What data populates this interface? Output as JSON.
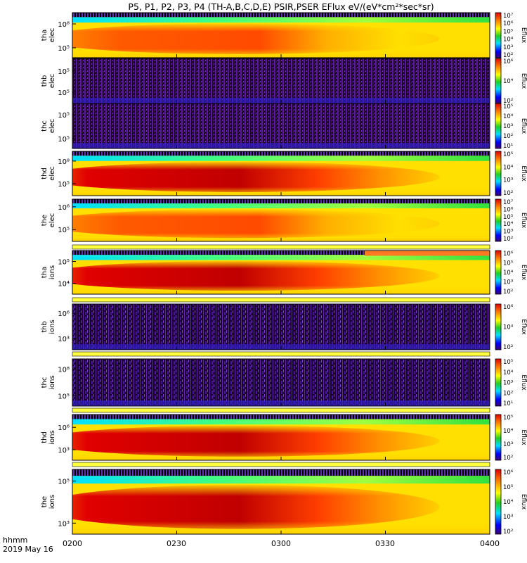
{
  "title": "P5, P1, P2, P3, P4 (TH-A,B,C,D,E) PSIR,PSER EFlux eV/(eV*cm²*sec*sr)",
  "xaxis": {
    "label_line1": "hhmm",
    "label_line2": "2019 May 16",
    "range": [
      "0200",
      "0400"
    ],
    "ticks": [
      "0200",
      "0230",
      "0300",
      "0330",
      "0400"
    ]
  },
  "colorbar_label": "Eflux",
  "chart_data": [
    {
      "type": "heatmap",
      "probe": "tha",
      "species": "elec",
      "ylabel": "tha elec",
      "yticks": [
        "10⁵",
        "10⁸"
      ],
      "cbar_ticks": [
        "10²",
        "10³",
        "10⁴",
        "10⁵",
        "10⁶",
        "10⁷"
      ]
    },
    {
      "type": "heatmap",
      "probe": "thb",
      "species": "elec",
      "ylabel": "thb elec",
      "yticks": [
        "10⁵",
        "10⁵"
      ],
      "cbar_ticks": [
        "10²",
        "10⁴",
        "10⁶"
      ]
    },
    {
      "type": "heatmap",
      "probe": "thc",
      "species": "elec",
      "ylabel": "thc elec",
      "yticks": [
        "10⁵",
        "10⁵"
      ],
      "cbar_ticks": [
        "10¹",
        "10²",
        "10³",
        "10⁴",
        "10⁵"
      ]
    },
    {
      "type": "heatmap",
      "probe": "thd",
      "species": "elec",
      "ylabel": "thd elec",
      "yticks": [
        "10⁵",
        "10⁸"
      ],
      "cbar_ticks": [
        "10²",
        "10³",
        "10⁴",
        "10⁵"
      ]
    },
    {
      "type": "heatmap",
      "probe": "the",
      "species": "elec",
      "ylabel": "the elec",
      "yticks": [
        "10⁵",
        "10⁶"
      ],
      "cbar_ticks": [
        "10²",
        "10³",
        "10⁴",
        "10⁵",
        "10⁶",
        "10⁷"
      ]
    },
    {
      "type": "heatmap",
      "probe": "tha",
      "species": "ions",
      "ylabel": "tha ions",
      "yticks": [
        "10⁴",
        "10⁵"
      ],
      "cbar_ticks": [
        "10²",
        "10³",
        "10⁴",
        "10⁵",
        "10⁶"
      ]
    },
    {
      "type": "heatmap",
      "probe": "thb",
      "species": "ions",
      "ylabel": "thb ions",
      "yticks": [
        "10³",
        "10⁶"
      ],
      "cbar_ticks": [
        "10²",
        "10⁴",
        "10⁶"
      ]
    },
    {
      "type": "heatmap",
      "probe": "thc",
      "species": "ions",
      "ylabel": "thc ions",
      "yticks": [
        "10⁵",
        "10⁸"
      ],
      "cbar_ticks": [
        "10¹",
        "10²",
        "10³",
        "10⁴",
        "10⁵"
      ]
    },
    {
      "type": "heatmap",
      "probe": "thd",
      "species": "ions",
      "ylabel": "thd ions",
      "yticks": [
        "10³",
        "10⁶"
      ],
      "cbar_ticks": [
        "10²",
        "10³",
        "10⁴",
        "10⁵"
      ]
    },
    {
      "type": "heatmap",
      "probe": "the",
      "species": "ions",
      "ylabel": "the ions",
      "yticks": [
        "10³",
        "10⁵"
      ],
      "cbar_ticks": [
        "10²",
        "10³",
        "10⁴",
        "10⁵",
        "10⁶"
      ]
    }
  ]
}
